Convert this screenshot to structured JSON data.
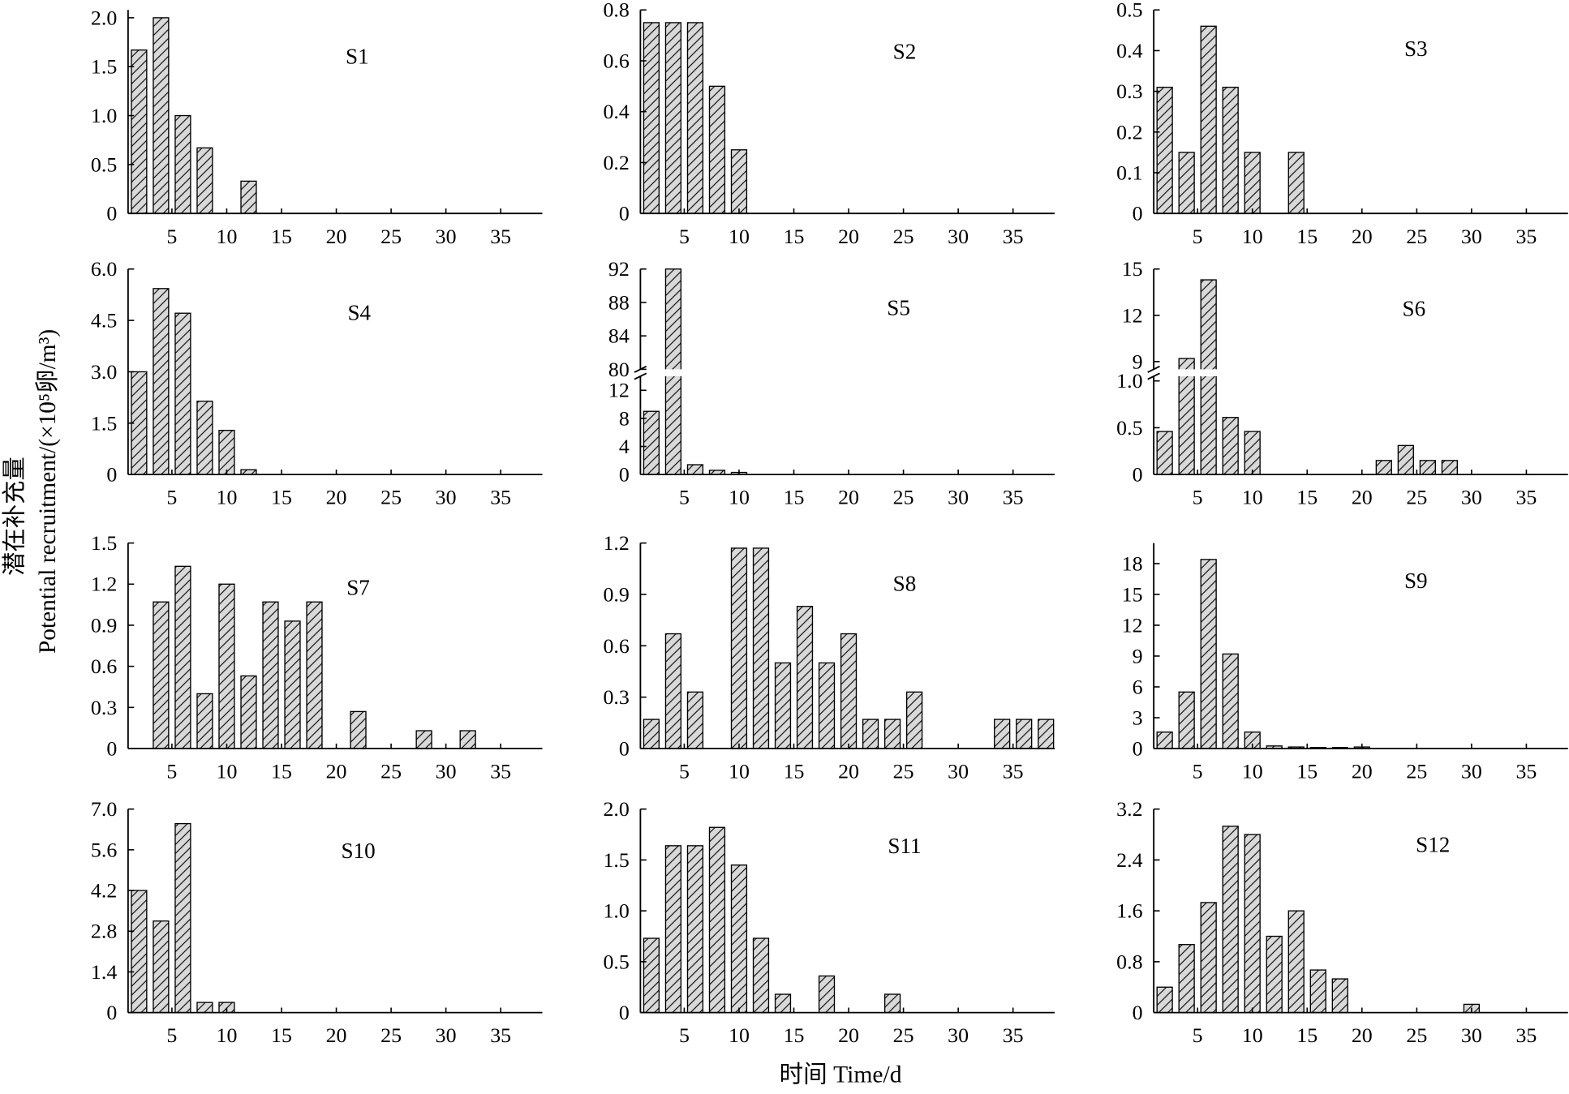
{
  "figure": {
    "ylabel": [
      "潜在补充量",
      "Potential recruitment/(×10⁵卵/m³)"
    ],
    "xlabel": "时间 Time/d"
  },
  "colors": {
    "bar_fill": "#d9d9d9",
    "hatch": "#111111",
    "bar_edge": "#000000",
    "axis": "#000000"
  },
  "chart_data": [
    {
      "type": "bar",
      "title": "S1",
      "xlim": [
        1,
        38.8
      ],
      "xticks": [
        5,
        10,
        15,
        20,
        25,
        30,
        35
      ],
      "ylim": [
        0,
        2.08
      ],
      "yticks": [
        "0",
        "0.5",
        "1.0",
        "1.5",
        "2.0"
      ],
      "x": [
        2,
        4,
        6,
        8,
        12
      ],
      "values": [
        1.67,
        2.0,
        1.0,
        0.67,
        0.33
      ]
    },
    {
      "type": "bar",
      "title": "S2",
      "xlim": [
        1,
        38.8
      ],
      "xticks": [
        5,
        10,
        15,
        20,
        25,
        30,
        35
      ],
      "ylim": [
        0,
        0.8
      ],
      "yticks": [
        "0",
        "0.2",
        "0.4",
        "0.6",
        "0.8"
      ],
      "x": [
        2,
        4,
        6,
        8,
        10
      ],
      "values": [
        0.75,
        0.75,
        0.75,
        0.5,
        0.25
      ]
    },
    {
      "type": "bar",
      "title": "S3",
      "xlim": [
        1,
        38.8
      ],
      "xticks": [
        5,
        10,
        15,
        20,
        25,
        30,
        35
      ],
      "ylim": [
        0,
        0.5
      ],
      "yticks": [
        "0",
        "0.1",
        "0.2",
        "0.3",
        "0.4",
        "0.5"
      ],
      "x": [
        2,
        4,
        6,
        8,
        10,
        14
      ],
      "values": [
        0.31,
        0.15,
        0.46,
        0.31,
        0.15,
        0.15
      ]
    },
    {
      "type": "bar",
      "title": "S4",
      "xlim": [
        1,
        38.8
      ],
      "xticks": [
        5,
        10,
        15,
        20,
        25,
        30,
        35
      ],
      "ylim": [
        0,
        6.0
      ],
      "yticks": [
        "0",
        "1.5",
        "3.0",
        "4.5",
        "6.0"
      ],
      "x": [
        2,
        4,
        6,
        8,
        10,
        12
      ],
      "values": [
        3.0,
        5.43,
        4.71,
        2.14,
        1.29,
        0.14
      ]
    },
    {
      "type": "bar",
      "title": "S5",
      "xlim": [
        1,
        38.8
      ],
      "xticks": [
        5,
        10,
        15,
        20,
        25,
        30,
        35
      ],
      "y_break": {
        "lower": {
          "ylim": [
            0,
            14
          ],
          "yticks": [
            "0",
            "4",
            "8",
            "12"
          ]
        },
        "upper": {
          "ylim": [
            80,
            92
          ],
          "yticks": [
            "80",
            "84",
            "88",
            "92"
          ]
        }
      },
      "x": [
        2,
        4,
        6,
        8,
        10
      ],
      "values": [
        9.0,
        92,
        1.4,
        0.6,
        0.3
      ]
    },
    {
      "type": "bar",
      "title": "S6",
      "xlim": [
        1,
        38.8
      ],
      "xticks": [
        5,
        10,
        15,
        20,
        25,
        30,
        35
      ],
      "y_break": {
        "lower": {
          "ylim": [
            0,
            1.05
          ],
          "yticks": [
            "0",
            "0.5",
            "1.0"
          ]
        },
        "upper": {
          "ylim": [
            8.5,
            15
          ],
          "yticks": [
            "9",
            "12",
            "15"
          ]
        }
      },
      "x": [
        2,
        4,
        6,
        8,
        10,
        22,
        24,
        26,
        28
      ],
      "values": [
        0.46,
        9.2,
        14.3,
        0.61,
        0.46,
        0.15,
        0.31,
        0.15,
        0.15
      ]
    },
    {
      "type": "bar",
      "title": "S7",
      "xlim": [
        1,
        38.8
      ],
      "xticks": [
        5,
        10,
        15,
        20,
        25,
        30,
        35
      ],
      "ylim": [
        0,
        1.5
      ],
      "yticks": [
        "0",
        "0.3",
        "0.6",
        "0.9",
        "1.2",
        "1.5"
      ],
      "x": [
        4,
        6,
        8,
        10,
        12,
        14,
        16,
        18,
        22,
        28,
        32
      ],
      "values": [
        1.07,
        1.33,
        0.4,
        1.2,
        0.53,
        1.07,
        0.93,
        1.07,
        0.27,
        0.13,
        0.13
      ]
    },
    {
      "type": "bar",
      "title": "S8",
      "xlim": [
        1,
        38.8
      ],
      "xticks": [
        5,
        10,
        15,
        20,
        25,
        30,
        35
      ],
      "ylim": [
        0,
        1.2
      ],
      "yticks": [
        "0",
        "0.3",
        "0.6",
        "0.9",
        "1.2"
      ],
      "x": [
        2,
        4,
        6,
        10,
        12,
        14,
        16,
        18,
        20,
        22,
        24,
        26,
        34,
        36,
        38
      ],
      "values": [
        0.17,
        0.67,
        0.33,
        1.17,
        1.17,
        0.5,
        0.83,
        0.5,
        0.67,
        0.17,
        0.17,
        0.33,
        0.17,
        0.17,
        0.17
      ]
    },
    {
      "type": "bar",
      "title": "S9",
      "xlim": [
        1,
        38.8
      ],
      "xticks": [
        5,
        10,
        15,
        20,
        25,
        30,
        35
      ],
      "ylim": [
        0,
        20
      ],
      "yticks": [
        "0",
        "3",
        "6",
        "9",
        "12",
        "15",
        "18"
      ],
      "x": [
        2,
        4,
        6,
        8,
        10,
        12,
        14,
        16,
        18,
        20
      ],
      "values": [
        1.6,
        5.5,
        18.4,
        9.2,
        1.6,
        0.25,
        0.15,
        0.1,
        0.1,
        0.15
      ]
    },
    {
      "type": "bar",
      "title": "S10",
      "xlim": [
        1,
        38.8
      ],
      "xticks": [
        5,
        10,
        15,
        20,
        25,
        30,
        35
      ],
      "ylim": [
        0,
        7.0
      ],
      "yticks": [
        "0",
        "1.4",
        "2.8",
        "4.2",
        "5.6",
        "7.0"
      ],
      "x": [
        2,
        4,
        6,
        8,
        10
      ],
      "values": [
        4.2,
        3.15,
        6.5,
        0.35,
        0.35
      ]
    },
    {
      "type": "bar",
      "title": "S11",
      "xlim": [
        1,
        38.8
      ],
      "xticks": [
        5,
        10,
        15,
        20,
        25,
        30,
        35
      ],
      "ylim": [
        0,
        2.0
      ],
      "yticks": [
        "0",
        "0.5",
        "1.0",
        "1.5",
        "2.0"
      ],
      "x": [
        2,
        4,
        6,
        8,
        10,
        12,
        14,
        18,
        24
      ],
      "values": [
        0.73,
        1.64,
        1.64,
        1.82,
        1.45,
        0.73,
        0.18,
        0.36,
        0.18
      ]
    },
    {
      "type": "bar",
      "title": "S12",
      "xlim": [
        1,
        38.8
      ],
      "xticks": [
        5,
        10,
        15,
        20,
        25,
        30,
        35
      ],
      "ylim": [
        0,
        3.2
      ],
      "yticks": [
        "0",
        "0.8",
        "1.6",
        "2.4",
        "3.2"
      ],
      "x": [
        2,
        4,
        6,
        8,
        10,
        12,
        14,
        16,
        18,
        30
      ],
      "values": [
        0.4,
        1.07,
        1.73,
        2.93,
        2.8,
        1.2,
        1.6,
        0.67,
        0.53,
        0.13
      ]
    }
  ]
}
